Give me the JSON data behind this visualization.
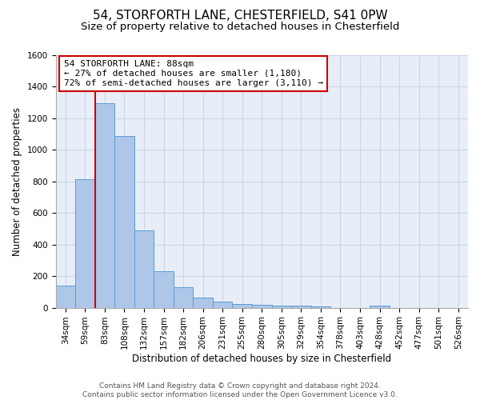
{
  "title": "54, STORFORTH LANE, CHESTERFIELD, S41 0PW",
  "subtitle": "Size of property relative to detached houses in Chesterfield",
  "xlabel": "Distribution of detached houses by size in Chesterfield",
  "ylabel": "Number of detached properties",
  "footer_line1": "Contains HM Land Registry data © Crown copyright and database right 2024.",
  "footer_line2": "Contains public sector information licensed under the Open Government Licence v3.0.",
  "categories": [
    "34sqm",
    "59sqm",
    "83sqm",
    "108sqm",
    "132sqm",
    "157sqm",
    "182sqm",
    "206sqm",
    "231sqm",
    "255sqm",
    "280sqm",
    "305sqm",
    "329sqm",
    "354sqm",
    "378sqm",
    "403sqm",
    "428sqm",
    "452sqm",
    "477sqm",
    "501sqm",
    "526sqm"
  ],
  "values": [
    140,
    815,
    1295,
    1090,
    490,
    230,
    130,
    65,
    40,
    25,
    20,
    12,
    12,
    8,
    0,
    0,
    12,
    0,
    0,
    0,
    0
  ],
  "bar_color": "#aec6e8",
  "bar_edge_color": "#5b9bd5",
  "bar_width": 1.0,
  "vline_x_index": 2,
  "vline_color": "#cc0000",
  "annotation_line1": "54 STORFORTH LANE: 88sqm",
  "annotation_line2": "← 27% of detached houses are smaller (1,180)",
  "annotation_line3": "72% of semi-detached houses are larger (3,110) →",
  "annotation_box_color": "white",
  "annotation_box_edge_color": "#cc0000",
  "ylim": [
    0,
    1600
  ],
  "yticks": [
    0,
    200,
    400,
    600,
    800,
    1000,
    1200,
    1400,
    1600
  ],
  "grid_color": "#c8d4e8",
  "plot_bg_color": "#e8eef8",
  "title_fontsize": 11,
  "subtitle_fontsize": 9.5,
  "axis_label_fontsize": 8.5,
  "tick_fontsize": 7.5,
  "annotation_fontsize": 8
}
